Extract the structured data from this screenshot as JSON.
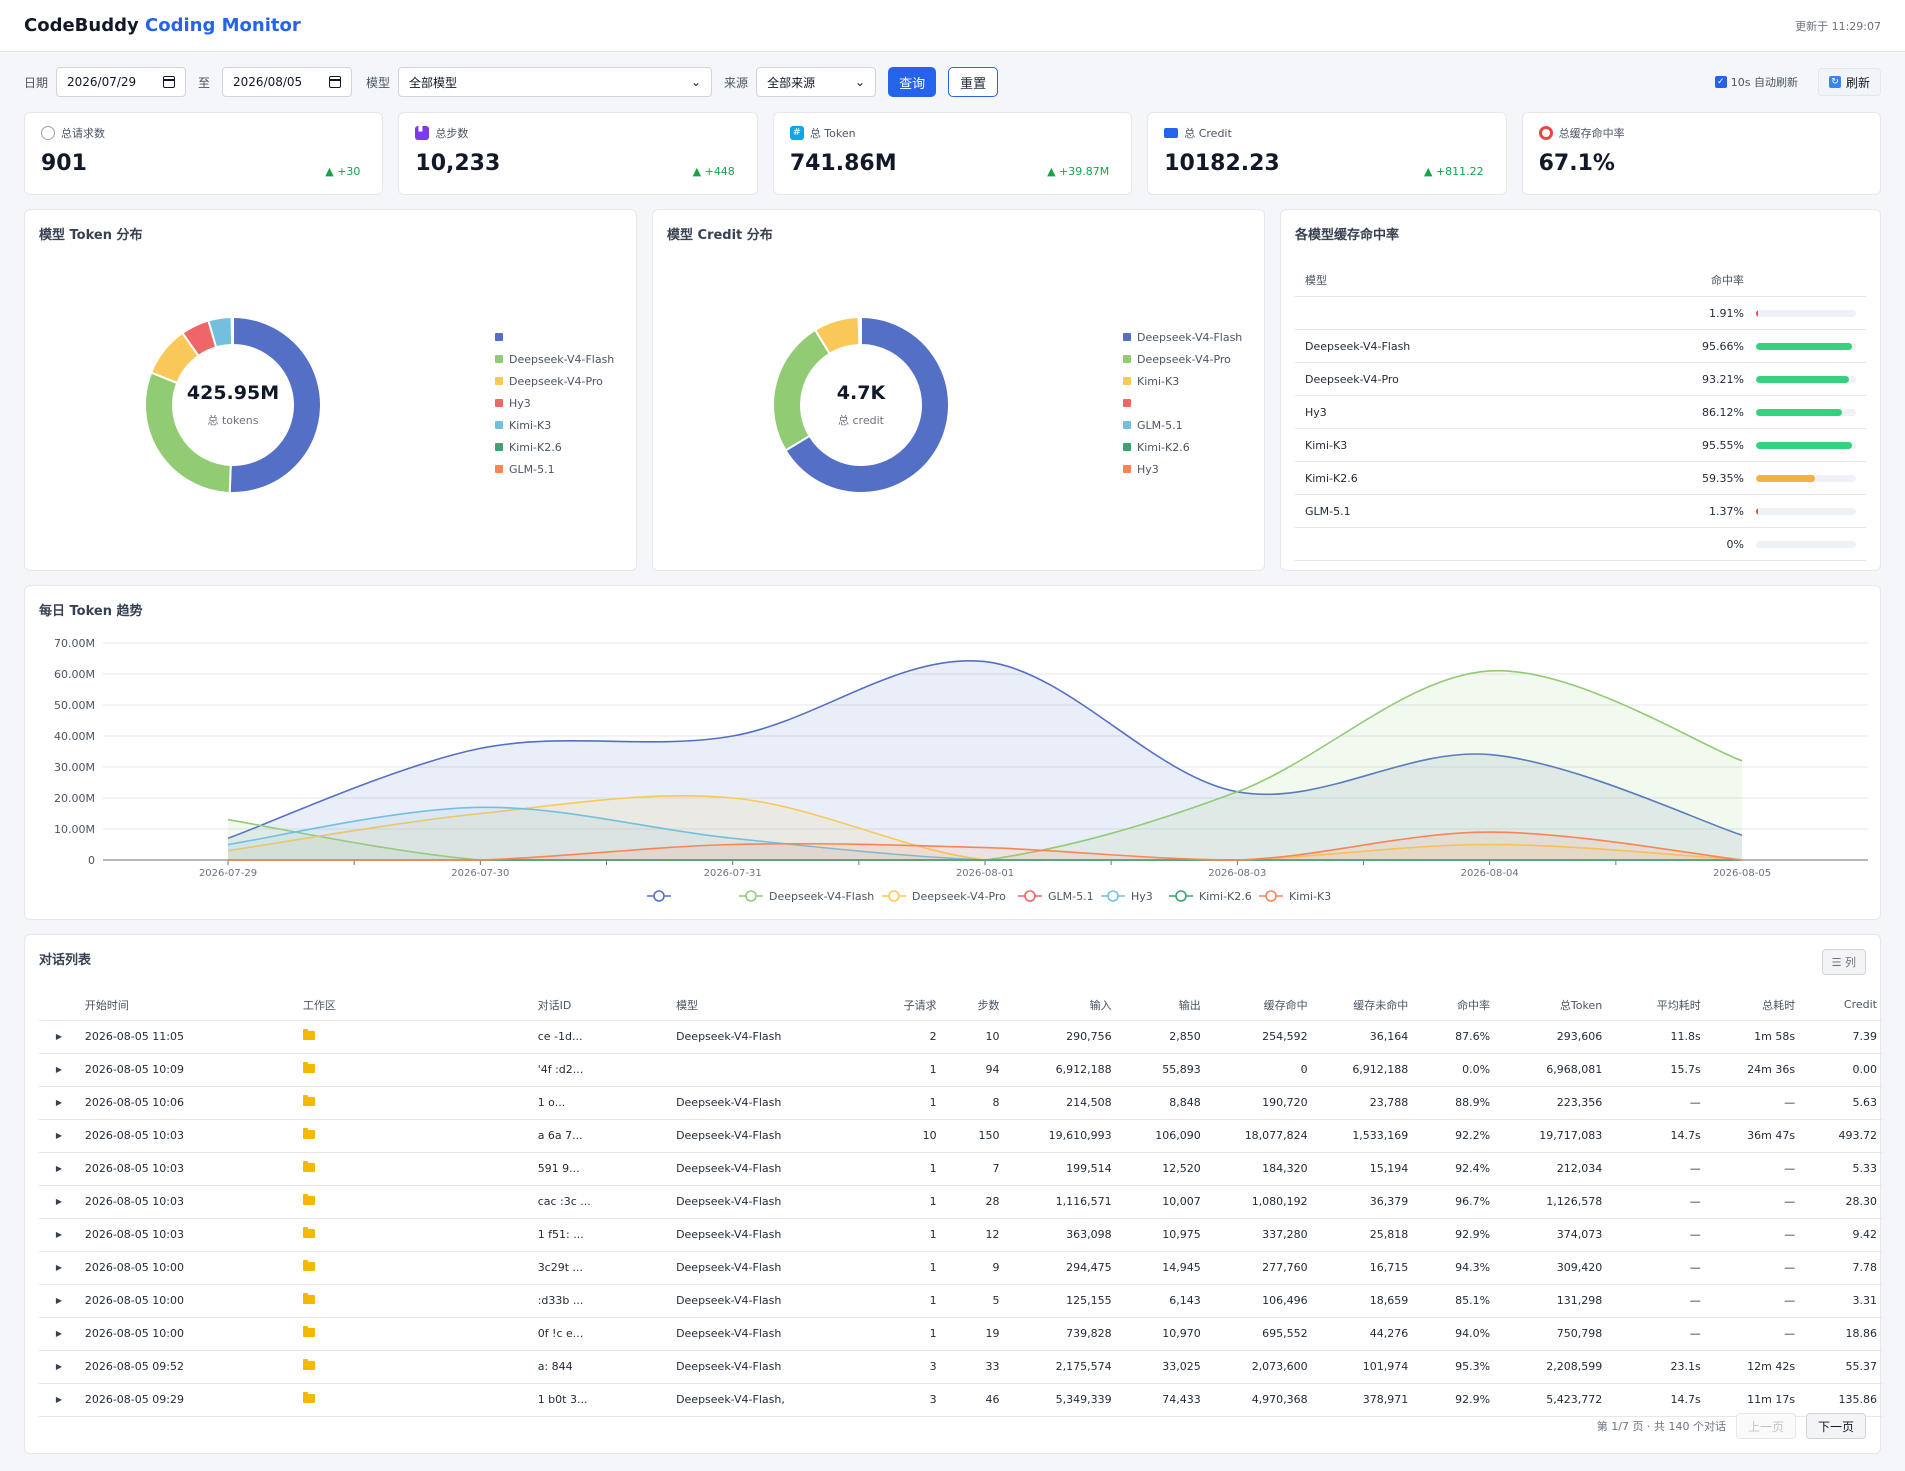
{
  "header": {
    "brand_main": "CodeBuddy",
    "brand_accent": "Coding Monitor",
    "updated": "更新于 11:29:07"
  },
  "filters": {
    "date_label": "日期",
    "date_from": "2026/07/29",
    "to_label": "至",
    "date_to": "2026/08/05",
    "model_label": "模型",
    "model_value": "全部模型",
    "source_label": "来源",
    "source_value": "全部来源",
    "query": "查询",
    "reset": "重置",
    "auto_refresh": "10s 自动刷新",
    "refresh": "刷新"
  },
  "stats": [
    {
      "label": "总请求数",
      "value": "901",
      "delta": "▲ +30",
      "icon": "chat-bubble-icon",
      "color": "#9ca3af"
    },
    {
      "label": "总步数",
      "value": "10,233",
      "delta": "▲ +448",
      "icon": "footprints-icon",
      "color": "#7c3aed"
    },
    {
      "label": "总 Token",
      "value": "741.86M",
      "delta": "▲ +39.87M",
      "icon": "numbers-icon",
      "color": "#0ea5e9"
    },
    {
      "label": "总 Credit",
      "value": "10182.23",
      "delta": "▲ +811.22",
      "icon": "credit-card-icon",
      "color": "#2563eb"
    },
    {
      "label": "总缓存命中率",
      "value": "67.1%",
      "delta": "",
      "icon": "target-icon",
      "color": "#ef4444"
    }
  ],
  "token_dist": {
    "title": "模型 Token 分布",
    "center_value": "425.95M",
    "center_label": "总 tokens",
    "legend": [
      {
        "name": "",
        "color": "#5470c6"
      },
      {
        "name": "Deepseek-V4-Flash",
        "color": "#91cc75"
      },
      {
        "name": "Deepseek-V4-Pro",
        "color": "#fac858"
      },
      {
        "name": "Hy3",
        "color": "#ee6666"
      },
      {
        "name": "Kimi-K3",
        "color": "#73c0de"
      },
      {
        "name": "Kimi-K2.6",
        "color": "#3ba272"
      },
      {
        "name": "GLM-5.1",
        "color": "#fc8452"
      }
    ],
    "slices": [
      {
        "color": "#5470c6",
        "value": 213
      },
      {
        "color": "#91cc75",
        "value": 128
      },
      {
        "color": "#fac858",
        "value": 39
      },
      {
        "color": "#ee6666",
        "value": 22
      },
      {
        "color": "#73c0de",
        "value": 18
      },
      {
        "color": "#3ba272",
        "value": 0.6
      },
      {
        "color": "#fc8452",
        "value": 0.4
      }
    ]
  },
  "credit_dist": {
    "title": "模型 Credit 分布",
    "center_value": "4.7K",
    "center_label": "总 credit",
    "legend": [
      {
        "name": "Deepseek-V4-Flash",
        "color": "#5470c6"
      },
      {
        "name": "Deepseek-V4-Pro",
        "color": "#91cc75"
      },
      {
        "name": "Kimi-K3",
        "color": "#fac858"
      },
      {
        "name": "",
        "color": "#ee6666"
      },
      {
        "name": "GLM-5.1",
        "color": "#73c0de"
      },
      {
        "name": "Kimi-K2.6",
        "color": "#3ba272"
      },
      {
        "name": "Hy3",
        "color": "#fc8452"
      }
    ],
    "slices": [
      {
        "color": "#5470c6",
        "value": 3120
      },
      {
        "color": "#91cc75",
        "value": 1170
      },
      {
        "color": "#fac858",
        "value": 390
      },
      {
        "color": "#ee6666",
        "value": 8
      },
      {
        "color": "#73c0de",
        "value": 6
      },
      {
        "color": "#3ba272",
        "value": 4
      },
      {
        "color": "#fc8452",
        "value": 2
      }
    ]
  },
  "hit_rates": {
    "title": "各模型缓存命中率",
    "col_model": "模型",
    "col_rate": "命中率",
    "rows": [
      {
        "model": "",
        "rate": "1.91%",
        "pct": 1.91,
        "color": "#ef4444"
      },
      {
        "model": "Deepseek-V4-Flash",
        "rate": "95.66%",
        "pct": 95.66,
        "color": "#34d17f"
      },
      {
        "model": "Deepseek-V4-Pro",
        "rate": "93.21%",
        "pct": 93.21,
        "color": "#34d17f"
      },
      {
        "model": "Hy3",
        "rate": "86.12%",
        "pct": 86.12,
        "color": "#34d17f"
      },
      {
        "model": "Kimi-K3",
        "rate": "95.55%",
        "pct": 95.55,
        "color": "#34d17f"
      },
      {
        "model": "Kimi-K2.6",
        "rate": "59.35%",
        "pct": 59.35,
        "color": "#f5b042"
      },
      {
        "model": "GLM-5.1",
        "rate": "1.37%",
        "pct": 1.37,
        "color": "#ef4444"
      },
      {
        "model": "",
        "rate": "0%",
        "pct": 0,
        "color": "#ef4444"
      }
    ]
  },
  "chart_data": {
    "type": "area",
    "title": "每日 Token 趋势",
    "x": [
      "2026-07-29",
      "2026-07-30",
      "2026-07-31",
      "2026-08-01",
      "2026-08-03",
      "2026-08-04",
      "2026-08-05"
    ],
    "y_ticks": [
      "0",
      "10.00M",
      "20.00M",
      "30.00M",
      "40.00M",
      "50.00M",
      "60.00M",
      "70.00M"
    ],
    "ylim": [
      0,
      70
    ],
    "y_unit": "M",
    "grid": true,
    "legend_position": "bottom",
    "series": [
      {
        "name": "",
        "color": "#5470c6",
        "values": [
          7,
          36,
          40,
          64,
          22,
          34,
          8
        ]
      },
      {
        "name": "Deepseek-V4-Flash",
        "color": "#91cc75",
        "values": [
          13,
          0,
          0,
          0,
          22,
          61,
          32
        ]
      },
      {
        "name": "Deepseek-V4-Pro",
        "color": "#fac858",
        "values": [
          3,
          15,
          20,
          0,
          0,
          5,
          0
        ]
      },
      {
        "name": "GLM-5.1",
        "color": "#ee6666",
        "values": [
          0,
          0,
          0,
          0,
          0,
          0,
          0
        ]
      },
      {
        "name": "Hy3",
        "color": "#73c0de",
        "values": [
          5,
          17,
          7,
          0,
          0,
          0,
          0
        ]
      },
      {
        "name": "Kimi-K2.6",
        "color": "#3ba272",
        "values": [
          0,
          0,
          0,
          0,
          0,
          0,
          0
        ]
      },
      {
        "name": "Kimi-K3",
        "color": "#fc8452",
        "values": [
          0,
          0,
          5,
          4,
          0,
          9,
          0
        ]
      }
    ]
  },
  "conversations": {
    "title": "对话列表",
    "columns_button": "☰ 列",
    "headers": [
      "开始时间",
      "工作区",
      "对话ID",
      "模型",
      "子请求",
      "步数",
      "输入",
      "输出",
      "缓存命中",
      "缓存未命中",
      "命中率",
      "总Token",
      "平均耗时",
      "总耗时",
      "Credit"
    ],
    "rows": [
      [
        "2026-08-05 11:05",
        "",
        "ce      -1d...",
        "Deepseek-V4-Flash",
        "2",
        "10",
        "290,756",
        "2,850",
        "254,592",
        "36,164",
        "87.6%",
        "293,606",
        "11.8s",
        "1m 58s",
        "7.39"
      ],
      [
        "2026-08-05 10:09",
        "",
        "'4f    :d2...",
        "",
        "1",
        "94",
        "6,912,188",
        "55,893",
        "0",
        "6,912,188",
        "0.0%",
        "6,968,081",
        "15.7s",
        "24m 36s",
        "0.00"
      ],
      [
        "2026-08-05 10:06",
        "",
        "   1    o...",
        "Deepseek-V4-Flash",
        "1",
        "8",
        "214,508",
        "8,848",
        "190,720",
        "23,788",
        "88.9%",
        "223,356",
        "—",
        "—",
        "5.63"
      ],
      [
        "2026-08-05 10:03",
        "",
        "a   6a   7...",
        "Deepseek-V4-Flash",
        "10",
        "150",
        "19,610,993",
        "106,090",
        "18,077,824",
        "1,533,169",
        "92.2%",
        "19,717,083",
        "14.7s",
        "36m 47s",
        "493.72"
      ],
      [
        "2026-08-05 10:03",
        "",
        "   591   9...",
        "Deepseek-V4-Flash",
        "1",
        "7",
        "199,514",
        "12,520",
        "184,320",
        "15,194",
        "92.4%",
        "212,034",
        "—",
        "—",
        "5.33"
      ],
      [
        "2026-08-05 10:03",
        "",
        "cac  :3c   ...",
        "Deepseek-V4-Flash",
        "1",
        "28",
        "1,116,571",
        "10,007",
        "1,080,192",
        "36,379",
        "96.7%",
        "1,126,578",
        "—",
        "—",
        "28.30"
      ],
      [
        "2026-08-05 10:03",
        "",
        "1   f51:   ...",
        "Deepseek-V4-Flash",
        "1",
        "12",
        "363,098",
        "10,975",
        "337,280",
        "25,818",
        "92.9%",
        "374,073",
        "—",
        "—",
        "9.42"
      ],
      [
        "2026-08-05 10:00",
        "",
        "   3c29t   ...",
        "Deepseek-V4-Flash",
        "1",
        "9",
        "294,475",
        "14,945",
        "277,760",
        "16,715",
        "94.3%",
        "309,420",
        "—",
        "—",
        "7.78"
      ],
      [
        "2026-08-05 10:00",
        "",
        "   :d33b   ...",
        "Deepseek-V4-Flash",
        "1",
        "5",
        "125,155",
        "6,143",
        "106,496",
        "18,659",
        "85.1%",
        "131,298",
        "—",
        "—",
        "3.31"
      ],
      [
        "2026-08-05 10:00",
        "",
        "0f   !c   e...",
        "Deepseek-V4-Flash",
        "1",
        "19",
        "739,828",
        "10,970",
        "695,552",
        "44,276",
        "94.0%",
        "750,798",
        "—",
        "—",
        "18.86"
      ],
      [
        "2026-08-05 09:52",
        "",
        "a:   844",
        "Deepseek-V4-Flash",
        "3",
        "33",
        "2,175,574",
        "33,025",
        "2,073,600",
        "101,974",
        "95.3%",
        "2,208,599",
        "23.1s",
        "12m 42s",
        "55.37"
      ],
      [
        "2026-08-05 09:29",
        "",
        "1   b0t   3...",
        "Deepseek-V4-Flash,",
        "3",
        "46",
        "5,349,339",
        "74,433",
        "4,970,368",
        "378,971",
        "92.9%",
        "5,423,772",
        "14.7s",
        "11m 17s",
        "135.86"
      ]
    ],
    "pager_info": "第 1/7 页 · 共 140 个对话",
    "prev": "上一页",
    "next": "下一页"
  }
}
